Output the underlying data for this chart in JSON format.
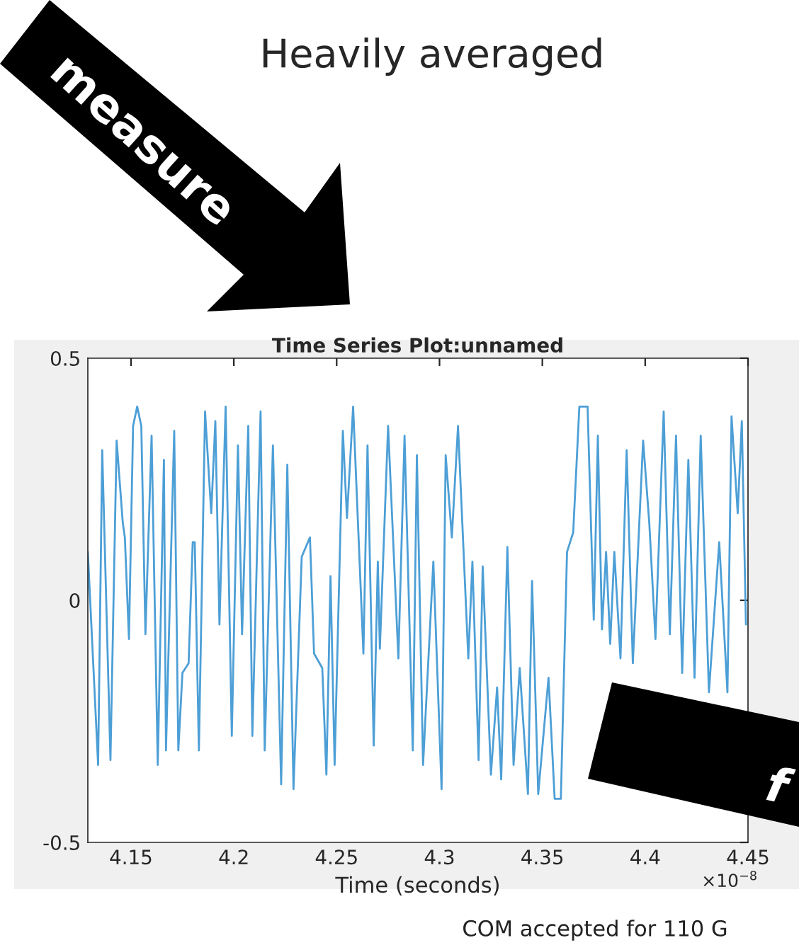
{
  "chart_data": {
    "type": "line",
    "title": "Time Series Plot:unnamed",
    "xlabel": "Time (seconds)",
    "annotations": [
      "Heavily averaged",
      "measure",
      "f",
      "×10$^{−8}$",
      "COM accepted for 110 G"
    ],
    "xlim": [
      4.129,
      4.45
    ],
    "ylim": [
      -0.5,
      0.5
    ],
    "xticks": [
      4.15,
      4.2,
      4.25,
      4.3,
      4.35,
      4.4,
      4.45
    ],
    "yticks": [
      -0.5,
      0,
      0.5
    ],
    "grid": false,
    "legend": false,
    "marker": "none",
    "line_style": "solid",
    "series": [
      {
        "color": "#4d9fd6",
        "x": [
          4.129,
          4.134,
          4.136,
          4.14,
          4.143,
          4.146,
          4.147,
          4.149,
          4.151,
          4.153,
          4.155,
          4.157,
          4.16,
          4.163,
          4.166,
          4.167,
          4.171,
          4.173,
          4.175,
          4.178,
          4.18,
          4.181,
          4.183,
          4.186,
          4.189,
          4.191,
          4.193,
          4.196,
          4.199,
          4.202,
          4.204,
          4.207,
          4.209,
          4.213,
          4.215,
          4.219,
          4.223,
          4.226,
          4.229,
          4.233,
          4.237,
          4.239,
          4.243,
          4.245,
          4.247,
          4.249,
          4.253,
          4.255,
          4.258,
          4.263,
          4.265,
          4.268,
          4.27,
          4.271,
          4.275,
          4.28,
          4.283,
          4.287,
          4.289,
          4.292,
          4.297,
          4.301,
          4.303,
          4.306,
          4.309,
          4.314,
          4.316,
          4.319,
          4.321,
          4.325,
          4.328,
          4.33,
          4.333,
          4.336,
          4.339,
          4.343,
          4.345,
          4.348,
          4.353,
          4.356,
          4.359,
          4.362,
          4.365,
          4.368,
          4.372,
          4.375,
          4.377,
          4.379,
          4.381,
          4.383,
          4.385,
          4.388,
          4.391,
          4.394,
          4.399,
          4.402,
          4.405,
          4.409,
          4.412,
          4.415,
          4.418,
          4.421,
          4.424,
          4.427,
          4.431,
          4.436,
          4.44,
          4.442,
          4.445,
          4.447,
          4.449
        ],
        "values": [
          0.1,
          -0.34,
          0.31,
          -0.33,
          0.33,
          0.16,
          0.13,
          -0.08,
          0.36,
          0.4,
          0.36,
          -0.07,
          0.34,
          -0.34,
          0.29,
          -0.31,
          0.35,
          -0.31,
          -0.15,
          -0.13,
          0.12,
          0.12,
          -0.31,
          0.39,
          0.18,
          0.37,
          -0.05,
          0.4,
          -0.28,
          0.32,
          -0.07,
          0.36,
          -0.28,
          0.39,
          -0.31,
          0.32,
          -0.38,
          0.28,
          -0.39,
          0.09,
          0.13,
          -0.11,
          -0.14,
          -0.36,
          0.05,
          -0.34,
          0.35,
          0.17,
          0.4,
          -0.11,
          0.32,
          -0.3,
          0.08,
          -0.1,
          0.36,
          -0.12,
          0.34,
          -0.31,
          0.3,
          -0.34,
          0.08,
          -0.39,
          0.3,
          0.13,
          0.36,
          -0.12,
          0.08,
          -0.33,
          0.07,
          -0.36,
          -0.18,
          -0.37,
          0.11,
          -0.34,
          -0.14,
          -0.4,
          0.04,
          -0.4,
          -0.16,
          -0.41,
          -0.41,
          0.1,
          0.14,
          0.4,
          0.4,
          -0.04,
          0.34,
          -0.06,
          0.1,
          -0.09,
          0.1,
          -0.12,
          0.31,
          -0.13,
          0.33,
          0.16,
          -0.08,
          0.39,
          -0.07,
          0.34,
          -0.15,
          0.29,
          -0.16,
          0.34,
          -0.19,
          0.12,
          -0.19,
          0.38,
          0.18,
          0.37,
          -0.05
        ]
      }
    ]
  }
}
